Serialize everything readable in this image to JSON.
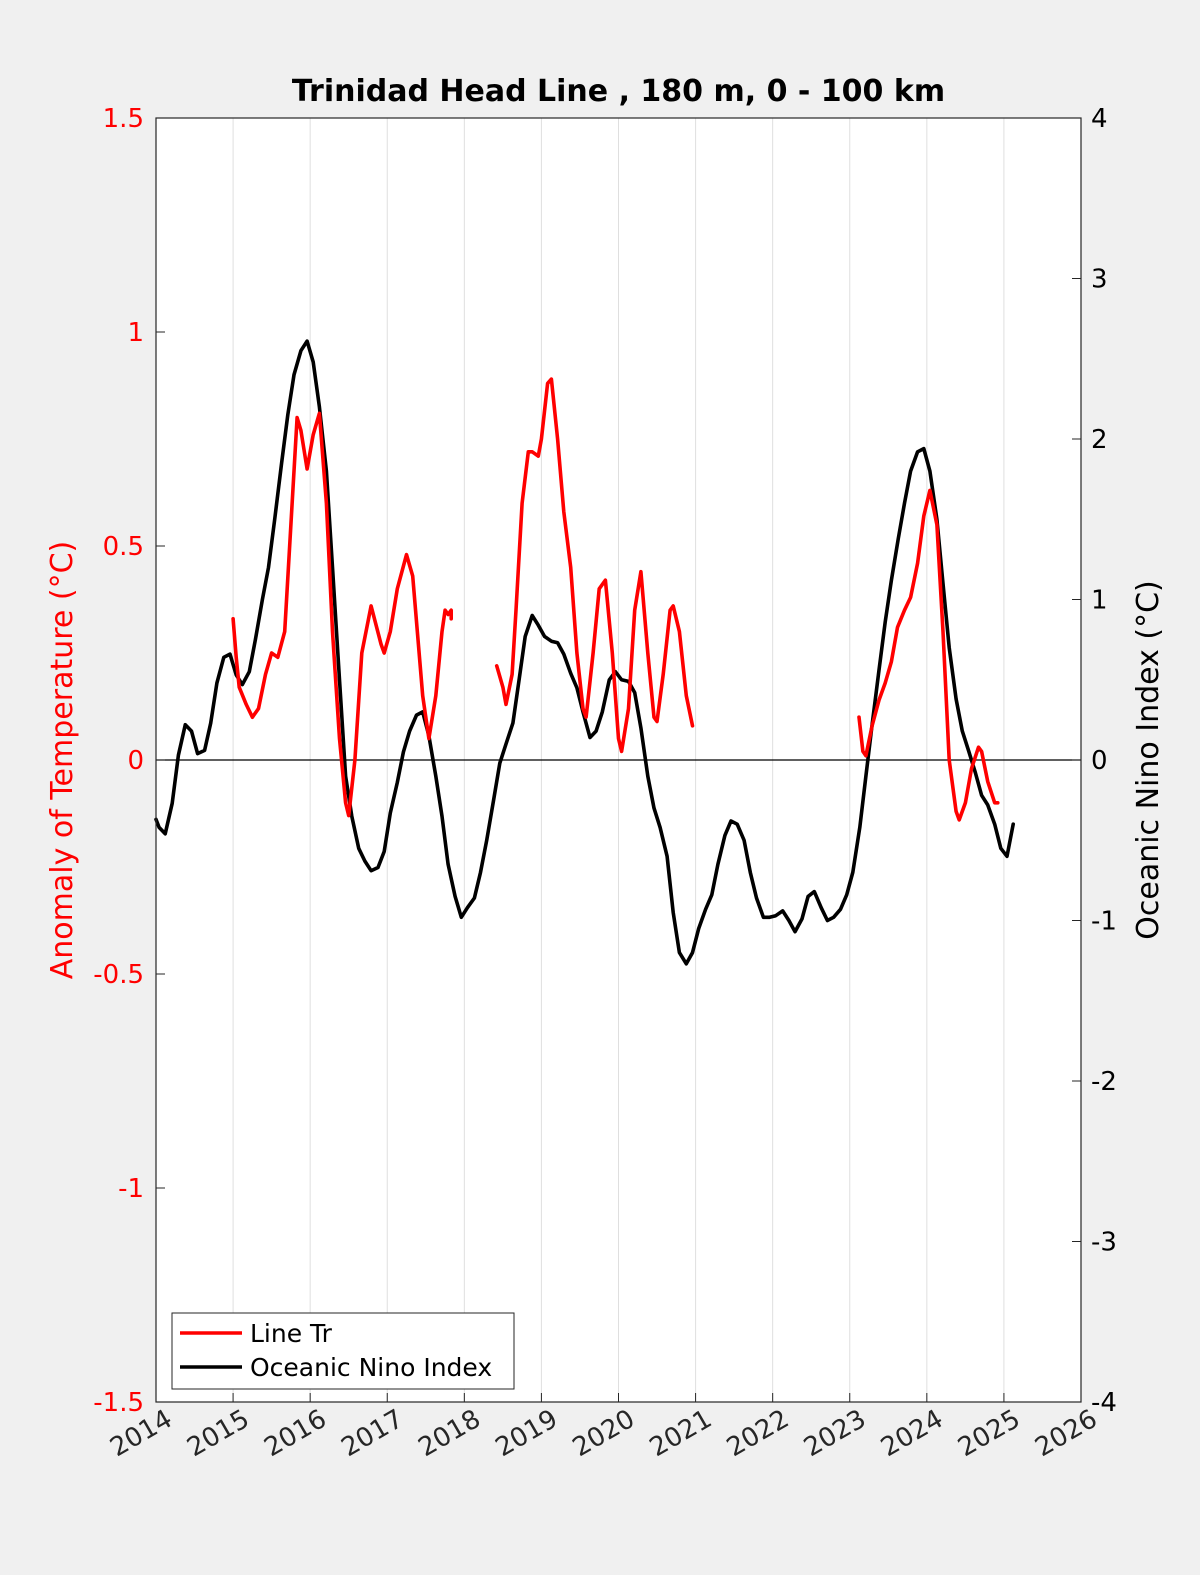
{
  "chart_data": {
    "type": "line",
    "title": "Trinidad Head Line , 180 m, 0 - 100 km",
    "ylabel_left": "Anomaly of Temperature (°C)",
    "ylabel_right": "Oceanic Nino Index (°C)",
    "xlim": [
      2014,
      2026
    ],
    "ylim_left": [
      -1.5,
      1.5
    ],
    "ylim_right": [
      -4,
      4
    ],
    "x_ticks": [
      "2014",
      "2015",
      "2016",
      "2017",
      "2018",
      "2019",
      "2020",
      "2021",
      "2022",
      "2023",
      "2024",
      "2025",
      "2026"
    ],
    "y_left_ticks": [
      "1.5",
      "1",
      "0.5",
      "0",
      "-0.5",
      "-1",
      "-1.5"
    ],
    "y_right_ticks": [
      "4",
      "3",
      "2",
      "1",
      "0",
      "-1",
      "-2",
      "-3",
      "-4"
    ],
    "grid": "vertical",
    "legend": "bottom-left",
    "colors": {
      "line_tr": "#ff0000",
      "oni": "#000000",
      "axes_bg": "#ffffff",
      "figure_bg": "#f0f0f0"
    },
    "series": [
      {
        "name": "Line Tr",
        "axis": "left",
        "segments": [
          [
            [
              2015.0,
              0.33
            ],
            [
              2015.04,
              0.24
            ],
            [
              2015.08,
              0.17
            ],
            [
              2015.17,
              0.13
            ],
            [
              2015.25,
              0.1
            ],
            [
              2015.33,
              0.12
            ],
            [
              2015.42,
              0.2
            ],
            [
              2015.5,
              0.25
            ],
            [
              2015.58,
              0.24
            ],
            [
              2015.67,
              0.3
            ],
            [
              2015.75,
              0.55
            ],
            [
              2015.83,
              0.8
            ],
            [
              2015.88,
              0.77
            ],
            [
              2015.96,
              0.68
            ],
            [
              2016.04,
              0.76
            ],
            [
              2016.12,
              0.81
            ],
            [
              2016.21,
              0.6
            ],
            [
              2016.29,
              0.3
            ],
            [
              2016.38,
              0.05
            ],
            [
              2016.46,
              -0.1
            ],
            [
              2016.5,
              -0.13
            ],
            [
              2016.58,
              0.0
            ],
            [
              2016.67,
              0.25
            ],
            [
              2016.79,
              0.36
            ],
            [
              2016.92,
              0.27
            ],
            [
              2016.96,
              0.25
            ],
            [
              2017.04,
              0.3
            ],
            [
              2017.13,
              0.4
            ],
            [
              2017.25,
              0.48
            ],
            [
              2017.33,
              0.43
            ],
            [
              2017.46,
              0.15
            ],
            [
              2017.54,
              0.05
            ],
            [
              2017.63,
              0.15
            ],
            [
              2017.71,
              0.3
            ],
            [
              2017.75,
              0.35
            ],
            [
              2017.79,
              0.34
            ],
            [
              2017.83,
              0.35
            ],
            [
              2017.83,
              0.33
            ]
          ],
          [
            [
              2018.42,
              0.22
            ],
            [
              2018.5,
              0.17
            ],
            [
              2018.54,
              0.13
            ],
            [
              2018.62,
              0.2
            ],
            [
              2018.67,
              0.35
            ],
            [
              2018.75,
              0.6
            ],
            [
              2018.83,
              0.72
            ],
            [
              2018.88,
              0.72
            ],
            [
              2018.96,
              0.71
            ],
            [
              2019.0,
              0.75
            ],
            [
              2019.08,
              0.88
            ],
            [
              2019.13,
              0.89
            ],
            [
              2019.21,
              0.75
            ],
            [
              2019.29,
              0.58
            ],
            [
              2019.38,
              0.45
            ],
            [
              2019.46,
              0.25
            ],
            [
              2019.54,
              0.12
            ],
            [
              2019.58,
              0.1
            ],
            [
              2019.67,
              0.25
            ],
            [
              2019.75,
              0.4
            ],
            [
              2019.83,
              0.42
            ],
            [
              2019.92,
              0.25
            ],
            [
              2020.0,
              0.05
            ],
            [
              2020.04,
              0.02
            ],
            [
              2020.13,
              0.12
            ],
            [
              2020.21,
              0.35
            ],
            [
              2020.29,
              0.44
            ],
            [
              2020.38,
              0.25
            ],
            [
              2020.46,
              0.1
            ],
            [
              2020.5,
              0.09
            ],
            [
              2020.58,
              0.2
            ],
            [
              2020.67,
              0.35
            ],
            [
              2020.71,
              0.36
            ],
            [
              2020.79,
              0.3
            ],
            [
              2020.88,
              0.15
            ],
            [
              2020.96,
              0.08
            ]
          ],
          [
            [
              2023.12,
              0.1
            ],
            [
              2023.17,
              0.02
            ],
            [
              2023.21,
              0.01
            ],
            [
              2023.29,
              0.08
            ],
            [
              2023.38,
              0.14
            ],
            [
              2023.46,
              0.18
            ],
            [
              2023.54,
              0.23
            ],
            [
              2023.62,
              0.31
            ],
            [
              2023.71,
              0.35
            ],
            [
              2023.79,
              0.38
            ],
            [
              2023.88,
              0.46
            ],
            [
              2023.96,
              0.57
            ],
            [
              2024.04,
              0.63
            ],
            [
              2024.13,
              0.55
            ],
            [
              2024.21,
              0.3
            ],
            [
              2024.29,
              0.0
            ],
            [
              2024.38,
              -0.12
            ],
            [
              2024.42,
              -0.14
            ],
            [
              2024.5,
              -0.1
            ],
            [
              2024.58,
              -0.02
            ],
            [
              2024.67,
              0.03
            ],
            [
              2024.71,
              0.02
            ],
            [
              2024.79,
              -0.05
            ],
            [
              2024.88,
              -0.1
            ],
            [
              2024.92,
              -0.1
            ]
          ]
        ]
      },
      {
        "name": "Oceanic Nino Index",
        "axis": "right",
        "segments": [
          [
            [
              2014.0,
              -0.37
            ],
            [
              2014.04,
              -0.42
            ],
            [
              2014.12,
              -0.46
            ],
            [
              2014.21,
              -0.27
            ],
            [
              2014.29,
              0.03
            ],
            [
              2014.38,
              0.22
            ],
            [
              2014.46,
              0.18
            ],
            [
              2014.54,
              0.04
            ],
            [
              2014.63,
              0.06
            ],
            [
              2014.71,
              0.23
            ],
            [
              2014.79,
              0.48
            ],
            [
              2014.88,
              0.64
            ],
            [
              2014.96,
              0.66
            ],
            [
              2015.04,
              0.53
            ],
            [
              2015.12,
              0.47
            ],
            [
              2015.21,
              0.55
            ],
            [
              2015.29,
              0.75
            ],
            [
              2015.38,
              1.0
            ],
            [
              2015.46,
              1.2
            ],
            [
              2015.54,
              1.5
            ],
            [
              2015.63,
              1.85
            ],
            [
              2015.71,
              2.15
            ],
            [
              2015.79,
              2.4
            ],
            [
              2015.88,
              2.55
            ],
            [
              2015.96,
              2.61
            ],
            [
              2016.04,
              2.48
            ],
            [
              2016.12,
              2.2
            ],
            [
              2016.21,
              1.8
            ],
            [
              2016.29,
              1.2
            ],
            [
              2016.38,
              0.5
            ],
            [
              2016.46,
              -0.1
            ],
            [
              2016.54,
              -0.35
            ],
            [
              2016.63,
              -0.55
            ],
            [
              2016.71,
              -0.63
            ],
            [
              2016.79,
              -0.69
            ],
            [
              2016.88,
              -0.67
            ],
            [
              2016.96,
              -0.57
            ],
            [
              2017.04,
              -0.33
            ],
            [
              2017.13,
              -0.14
            ],
            [
              2017.21,
              0.05
            ],
            [
              2017.29,
              0.18
            ],
            [
              2017.38,
              0.28
            ],
            [
              2017.46,
              0.3
            ],
            [
              2017.54,
              0.15
            ],
            [
              2017.63,
              -0.1
            ],
            [
              2017.71,
              -0.35
            ],
            [
              2017.79,
              -0.65
            ],
            [
              2017.88,
              -0.85
            ],
            [
              2017.96,
              -0.98
            ],
            [
              2018.04,
              -0.92
            ],
            [
              2018.13,
              -0.86
            ],
            [
              2018.21,
              -0.7
            ],
            [
              2018.29,
              -0.5
            ],
            [
              2018.38,
              -0.25
            ],
            [
              2018.46,
              -0.02
            ],
            [
              2018.54,
              0.1
            ],
            [
              2018.63,
              0.23
            ],
            [
              2018.71,
              0.5
            ],
            [
              2018.79,
              0.77
            ],
            [
              2018.88,
              0.9
            ],
            [
              2018.96,
              0.84
            ],
            [
              2019.04,
              0.77
            ],
            [
              2019.13,
              0.74
            ],
            [
              2019.21,
              0.73
            ],
            [
              2019.29,
              0.66
            ],
            [
              2019.38,
              0.54
            ],
            [
              2019.46,
              0.45
            ],
            [
              2019.54,
              0.3
            ],
            [
              2019.63,
              0.14
            ],
            [
              2019.71,
              0.18
            ],
            [
              2019.79,
              0.3
            ],
            [
              2019.88,
              0.5
            ],
            [
              2019.96,
              0.55
            ],
            [
              2020.04,
              0.5
            ],
            [
              2020.13,
              0.49
            ],
            [
              2020.21,
              0.42
            ],
            [
              2020.29,
              0.2
            ],
            [
              2020.38,
              -0.1
            ],
            [
              2020.46,
              -0.3
            ],
            [
              2020.54,
              -0.42
            ],
            [
              2020.63,
              -0.6
            ],
            [
              2020.71,
              -0.95
            ],
            [
              2020.79,
              -1.2
            ],
            [
              2020.88,
              -1.27
            ],
            [
              2020.96,
              -1.2
            ],
            [
              2021.04,
              -1.05
            ],
            [
              2021.13,
              -0.93
            ],
            [
              2021.21,
              -0.84
            ],
            [
              2021.29,
              -0.65
            ],
            [
              2021.38,
              -0.47
            ],
            [
              2021.46,
              -0.38
            ],
            [
              2021.54,
              -0.4
            ],
            [
              2021.63,
              -0.5
            ],
            [
              2021.71,
              -0.7
            ],
            [
              2021.79,
              -0.86
            ],
            [
              2021.88,
              -0.98
            ],
            [
              2021.96,
              -0.98
            ],
            [
              2022.04,
              -0.97
            ],
            [
              2022.13,
              -0.94
            ],
            [
              2022.21,
              -1.0
            ],
            [
              2022.29,
              -1.07
            ],
            [
              2022.38,
              -0.99
            ],
            [
              2022.46,
              -0.85
            ],
            [
              2022.54,
              -0.82
            ],
            [
              2022.63,
              -0.92
            ],
            [
              2022.71,
              -1.0
            ],
            [
              2022.79,
              -0.98
            ],
            [
              2022.88,
              -0.93
            ],
            [
              2022.96,
              -0.84
            ],
            [
              2023.04,
              -0.7
            ],
            [
              2023.13,
              -0.42
            ],
            [
              2023.21,
              -0.1
            ],
            [
              2023.29,
              0.22
            ],
            [
              2023.38,
              0.56
            ],
            [
              2023.46,
              0.86
            ],
            [
              2023.54,
              1.12
            ],
            [
              2023.63,
              1.38
            ],
            [
              2023.71,
              1.6
            ],
            [
              2023.79,
              1.8
            ],
            [
              2023.88,
              1.92
            ],
            [
              2023.96,
              1.94
            ],
            [
              2024.04,
              1.8
            ],
            [
              2024.13,
              1.5
            ],
            [
              2024.21,
              1.1
            ],
            [
              2024.29,
              0.7
            ],
            [
              2024.38,
              0.38
            ],
            [
              2024.46,
              0.18
            ],
            [
              2024.54,
              0.06
            ],
            [
              2024.63,
              -0.08
            ],
            [
              2024.71,
              -0.22
            ],
            [
              2024.79,
              -0.28
            ],
            [
              2024.88,
              -0.4
            ],
            [
              2024.96,
              -0.55
            ],
            [
              2025.04,
              -0.6
            ],
            [
              2025.12,
              -0.4
            ]
          ]
        ]
      }
    ]
  }
}
